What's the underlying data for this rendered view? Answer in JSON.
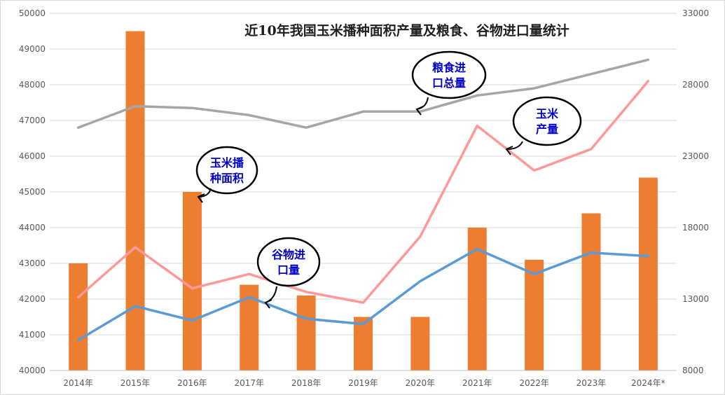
{
  "chart_data": {
    "type": "bar+line",
    "title": "近10年我国玉米播种面积产量及粮食、谷物进口量统计",
    "categories": [
      "2014年",
      "2015年",
      "2016年",
      "2017年",
      "2018年",
      "2019年",
      "2020年",
      "2021年",
      "2022年",
      "2023年",
      "2024年*"
    ],
    "y_left": {
      "min": 40000,
      "max": 50000,
      "ticks": [
        "40000",
        "41000",
        "42000",
        "43000",
        "44000",
        "45000",
        "46000",
        "47000",
        "48000",
        "49000",
        "50000"
      ]
    },
    "y_right": {
      "min": 8000,
      "max": 33000,
      "ticks": [
        "8000",
        "13000",
        "18000",
        "23000",
        "28000",
        "33000"
      ]
    },
    "grid": true,
    "series": [
      {
        "key": "corn_area",
        "type": "bar",
        "axis": "left",
        "color": "#ed7d31",
        "values": [
          43000,
          49500,
          45000,
          42400,
          42100,
          41500,
          41500,
          44000,
          43100,
          44400,
          45400
        ]
      },
      {
        "key": "corn_output",
        "type": "line",
        "axis": "left",
        "color": "#ff9999",
        "values": [
          42050,
          43450,
          42300,
          42700,
          42200,
          41900,
          43750,
          46850,
          45600,
          46200,
          48100
        ]
      },
      {
        "key": "grain_import_total",
        "type": "line",
        "axis": "left",
        "color": "#a6a6a6",
        "values": [
          46800,
          47400,
          47350,
          47150,
          46800,
          47250,
          47250,
          47700,
          47900,
          48300,
          48700
        ]
      },
      {
        "key": "cereal_import",
        "type": "line",
        "axis": "left",
        "color": "#5b9bd5",
        "values": [
          40850,
          41800,
          41400,
          42050,
          41450,
          41300,
          42500,
          43400,
          42700,
          43300,
          43200
        ]
      }
    ],
    "annotations": [
      {
        "key": "area",
        "lines": [
          "玉米播",
          "种面积"
        ]
      },
      {
        "key": "output",
        "lines": [
          "玉米",
          "产量"
        ]
      },
      {
        "key": "grain",
        "lines": [
          "粮食进",
          "口总量"
        ]
      },
      {
        "key": "cereal",
        "lines": [
          "谷物进",
          "口量"
        ]
      }
    ]
  }
}
